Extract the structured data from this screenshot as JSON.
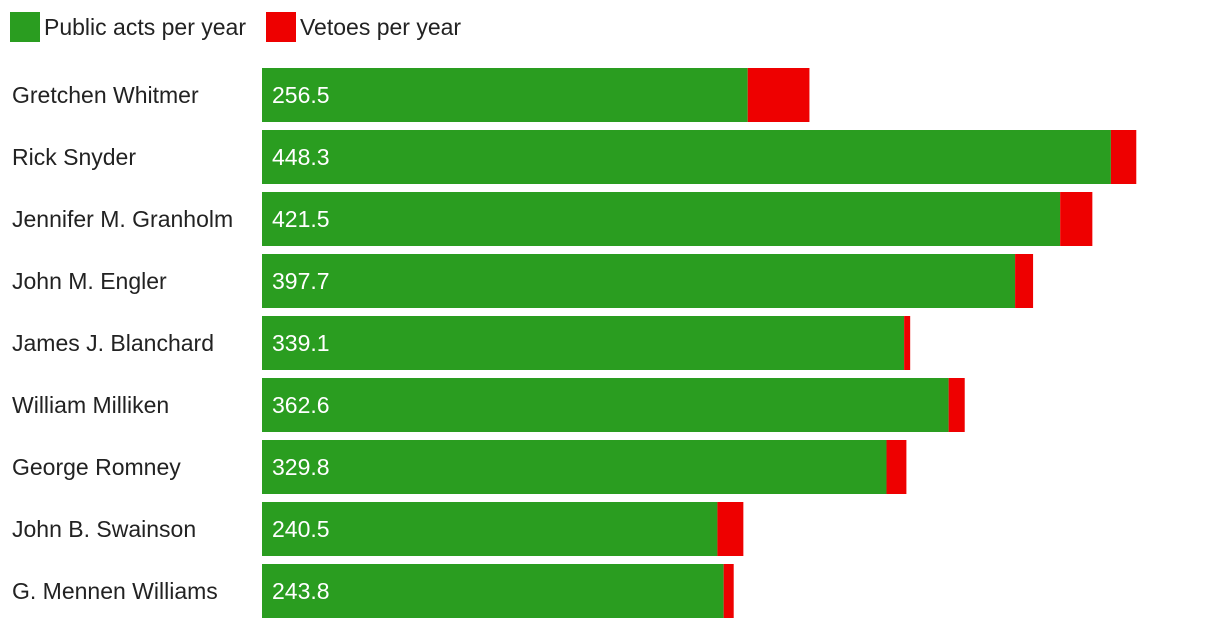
{
  "legend": {
    "acts_label": "Public acts per year",
    "vetoes_label": "Vetoes per year"
  },
  "colors": {
    "acts": "#2a9d20",
    "vetoes": "#ee0000"
  },
  "chart_data": {
    "type": "bar",
    "orientation": "horizontal",
    "stacked": true,
    "categories": [
      "Gretchen Whitmer",
      "Rick Snyder",
      "Jennifer M. Granholm",
      "John M. Engler",
      "James J. Blanchard",
      "William Milliken",
      "George Romney",
      "John B. Swainson",
      "G. Mennen Williams"
    ],
    "series": [
      {
        "name": "Public acts per year",
        "values": [
          256.5,
          448.3,
          421.5,
          397.7,
          339.1,
          362.6,
          329.8,
          240.5,
          243.8
        ],
        "value_labels": [
          "256.5",
          "448.3",
          "421.5",
          "397.7",
          "339.1",
          "362.6",
          "329.8",
          "240.5",
          "243.8"
        ]
      },
      {
        "name": "Vetoes per year",
        "values": [
          32.6,
          13.4,
          17.0,
          9.5,
          3.2,
          8.5,
          10.5,
          13.7,
          5.3
        ]
      }
    ],
    "xlim": [
      0,
      470
    ],
    "grid": false,
    "legend_position": "top-left"
  }
}
